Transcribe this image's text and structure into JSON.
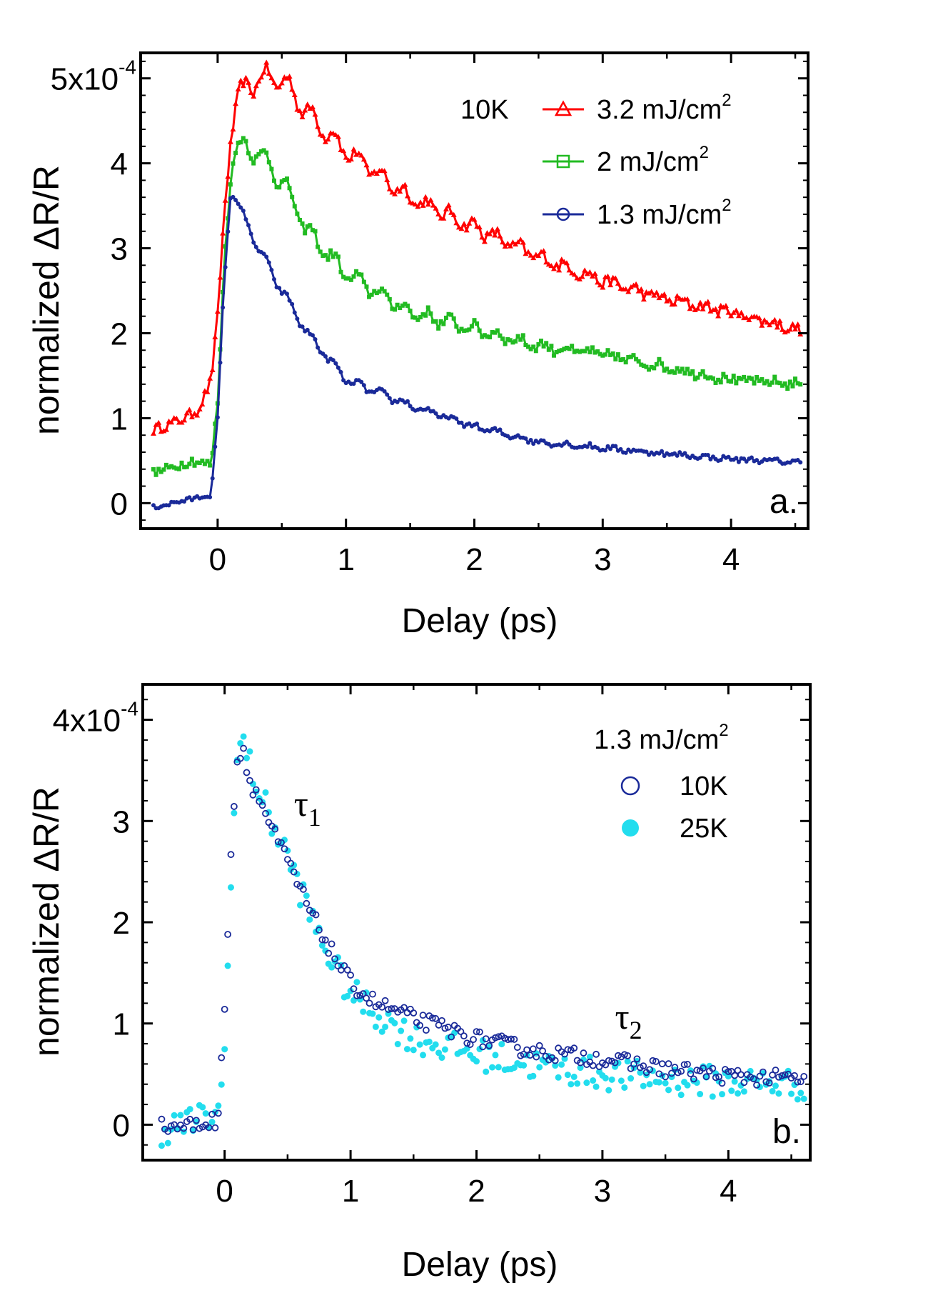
{
  "chart_data": [
    {
      "panel": "a",
      "type": "line",
      "xlabel": "Delay (ps)",
      "ylabel": "normalized ΔR/R",
      "xlim": [
        -0.6,
        4.6
      ],
      "ylim": [
        -0.3,
        5.3
      ],
      "xticks": [
        0,
        1,
        2,
        3,
        4
      ],
      "yticks": [
        0,
        1,
        2,
        3,
        4,
        5
      ],
      "ytick_labels": [
        "0",
        "1",
        "2",
        "3",
        "4",
        "5x10"
      ],
      "ytick_exponent": "-4",
      "panel_label": "a.",
      "legend_title": "10K",
      "series": [
        {
          "name": "3.2 mJ/cm",
          "sup": "2",
          "color": "#ff0000",
          "marker": "triangle",
          "osc_amp": 0.14,
          "points": [
            [
              -0.5,
              0.87
            ],
            [
              -0.3,
              0.97
            ],
            [
              -0.15,
              1.1
            ],
            [
              -0.05,
              1.45
            ],
            [
              0.0,
              2.2
            ],
            [
              0.05,
              3.4
            ],
            [
              0.1,
              4.2
            ],
            [
              0.15,
              4.75
            ],
            [
              0.3,
              5.0
            ],
            [
              0.5,
              5.0
            ],
            [
              0.7,
              4.6
            ],
            [
              1.0,
              4.15
            ],
            [
              1.5,
              3.6
            ],
            [
              2.0,
              3.25
            ],
            [
              2.5,
              2.9
            ],
            [
              3.0,
              2.62
            ],
            [
              3.5,
              2.4
            ],
            [
              4.0,
              2.25
            ],
            [
              4.55,
              2.03
            ]
          ]
        },
        {
          "name": "2 mJ/cm",
          "sup": "2",
          "color": "#22bb22",
          "marker": "square",
          "osc_amp": 0.12,
          "points": [
            [
              -0.5,
              0.35
            ],
            [
              -0.2,
              0.5
            ],
            [
              -0.05,
              0.45
            ],
            [
              0.0,
              1.2
            ],
            [
              0.05,
              2.8
            ],
            [
              0.1,
              3.8
            ],
            [
              0.15,
              4.2
            ],
            [
              0.3,
              4.15
            ],
            [
              0.5,
              3.8
            ],
            [
              0.7,
              3.2
            ],
            [
              1.0,
              2.7
            ],
            [
              1.5,
              2.25
            ],
            [
              2.0,
              2.05
            ],
            [
              2.5,
              1.85
            ],
            [
              3.0,
              1.75
            ],
            [
              3.5,
              1.6
            ],
            [
              4.0,
              1.45
            ],
            [
              4.55,
              1.4
            ]
          ]
        },
        {
          "name": "1.3 mJ/cm",
          "sup": "2",
          "color": "#1a2a99",
          "marker": "circle",
          "osc_amp": 0.06,
          "points": [
            [
              -0.5,
              -0.05
            ],
            [
              -0.2,
              0.05
            ],
            [
              -0.05,
              0.1
            ],
            [
              0.0,
              1.0
            ],
            [
              0.05,
              2.6
            ],
            [
              0.1,
              3.6
            ],
            [
              0.15,
              3.55
            ],
            [
              0.3,
              3.05
            ],
            [
              0.5,
              2.5
            ],
            [
              0.7,
              2.0
            ],
            [
              1.0,
              1.45
            ],
            [
              1.5,
              1.15
            ],
            [
              2.0,
              0.9
            ],
            [
              2.5,
              0.72
            ],
            [
              3.0,
              0.65
            ],
            [
              3.5,
              0.58
            ],
            [
              4.0,
              0.52
            ],
            [
              4.55,
              0.48
            ]
          ]
        }
      ]
    },
    {
      "panel": "b",
      "type": "scatter",
      "xlabel": "Delay (ps)",
      "ylabel": "normalized ΔR/R",
      "xlim": [
        -0.65,
        4.65
      ],
      "ylim": [
        -0.35,
        4.35
      ],
      "xticks": [
        0,
        1,
        2,
        3,
        4
      ],
      "yticks": [
        0,
        1,
        2,
        3,
        4
      ],
      "ytick_labels": [
        "0",
        "1",
        "2",
        "3",
        "4x10"
      ],
      "ytick_exponent": "-4",
      "panel_label": "b.",
      "legend_title": "1.3 mJ/cm",
      "legend_title_sup": "2",
      "annotations": [
        {
          "text": "τ",
          "sub": "1",
          "x": 0.55,
          "y": 3.05
        },
        {
          "text": "τ",
          "sub": "2",
          "x": 3.1,
          "y": 0.95
        }
      ],
      "series": [
        {
          "name": "10K",
          "color": "#1a2a99",
          "marker": "open-circle",
          "points": [
            [
              -0.5,
              -0.02
            ],
            [
              -0.2,
              0.0
            ],
            [
              -0.05,
              0.05
            ],
            [
              0.0,
              1.2
            ],
            [
              0.05,
              2.7
            ],
            [
              0.1,
              3.6
            ],
            [
              0.15,
              3.7
            ],
            [
              0.2,
              3.4
            ],
            [
              0.3,
              3.15
            ],
            [
              0.4,
              2.85
            ],
            [
              0.5,
              2.6
            ],
            [
              0.7,
              2.05
            ],
            [
              0.9,
              1.6
            ],
            [
              1.0,
              1.4
            ],
            [
              1.2,
              1.2
            ],
            [
              1.5,
              1.05
            ],
            [
              2.0,
              0.85
            ],
            [
              2.5,
              0.72
            ],
            [
              3.0,
              0.65
            ],
            [
              3.5,
              0.55
            ],
            [
              4.0,
              0.48
            ],
            [
              4.55,
              0.45
            ]
          ]
        },
        {
          "name": "25K",
          "color": "#22ddee",
          "marker": "filled-circle",
          "points": [
            [
              -0.5,
              -0.05
            ],
            [
              -0.2,
              0.05
            ],
            [
              -0.05,
              0.1
            ],
            [
              0.0,
              0.7
            ],
            [
              0.05,
              2.5
            ],
            [
              0.1,
              3.6
            ],
            [
              0.15,
              3.8
            ],
            [
              0.2,
              3.55
            ],
            [
              0.3,
              3.2
            ],
            [
              0.5,
              2.65
            ],
            [
              0.7,
              2.0
            ],
            [
              0.9,
              1.5
            ],
            [
              1.0,
              1.3
            ],
            [
              1.2,
              1.1
            ],
            [
              1.5,
              0.85
            ],
            [
              2.0,
              0.7
            ],
            [
              2.5,
              0.58
            ],
            [
              3.0,
              0.5
            ],
            [
              3.5,
              0.45
            ],
            [
              4.0,
              0.42
            ],
            [
              4.55,
              0.4
            ]
          ]
        }
      ]
    }
  ]
}
